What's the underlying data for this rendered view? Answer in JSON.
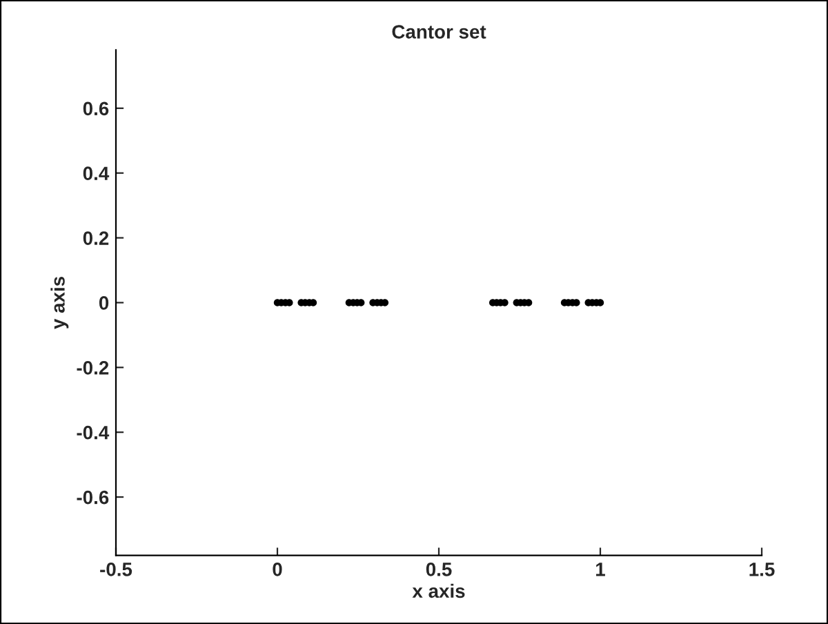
{
  "chart_data": {
    "type": "scatter",
    "title": "Cantor set",
    "xlabel": "x axis",
    "ylabel": "y axis",
    "x": [
      0,
      0.012,
      0.025,
      0.037,
      0.074,
      0.086,
      0.099,
      0.111,
      0.222,
      0.235,
      0.247,
      0.259,
      0.296,
      0.309,
      0.321,
      0.333,
      0.667,
      0.679,
      0.691,
      0.704,
      0.741,
      0.753,
      0.765,
      0.778,
      0.889,
      0.901,
      0.914,
      0.926,
      0.963,
      0.975,
      0.988,
      1
    ],
    "series": [
      {
        "color": "#000000",
        "values": [
          0,
          0,
          0,
          0,
          0,
          0,
          0,
          0,
          0,
          0,
          0,
          0,
          0,
          0,
          0,
          0,
          0,
          0,
          0,
          0,
          0,
          0,
          0,
          0,
          0,
          0,
          0,
          0,
          0,
          0,
          0,
          0
        ]
      }
    ],
    "xlim": [
      -0.5,
      1.5
    ],
    "xticks": [
      -0.5,
      0,
      0.5,
      1,
      1.5
    ],
    "ylim": [
      -0.78,
      0.78
    ],
    "yticks": [
      -0.6,
      -0.4,
      -0.2,
      0,
      0.2,
      0.4,
      0.6
    ],
    "marker": "circle",
    "grid": false,
    "legend": false
  }
}
